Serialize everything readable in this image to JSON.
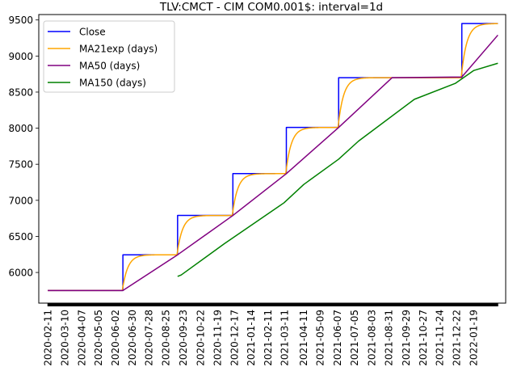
{
  "chart_data": {
    "type": "line",
    "title": "TLV:CMCT - CIM COM0.001$: interval=1d",
    "xlabel": "",
    "ylabel": "",
    "x_range": [
      "2020-01-27",
      "2022-03-14"
    ],
    "ylim": [
      5575,
      9575
    ],
    "grid": false,
    "legend_position": "top-left",
    "y_ticks": [
      6000,
      6500,
      7000,
      7500,
      8000,
      8500,
      9000,
      9500
    ],
    "x_ticks": [
      "2020-02-11",
      "2020-03-10",
      "2020-04-07",
      "2020-05-05",
      "2020-06-02",
      "2020-06-30",
      "2020-07-28",
      "2020-08-25",
      "2020-09-23",
      "2020-10-22",
      "2020-11-19",
      "2020-12-17",
      "2021-01-14",
      "2021-02-11",
      "2021-03-11",
      "2021-04-11",
      "2021-05-09",
      "2021-06-07",
      "2021-07-05",
      "2021-08-03",
      "2021-08-31",
      "2021-09-29",
      "2021-10-27",
      "2021-11-24",
      "2021-12-22",
      "2022-01-19"
    ],
    "series": [
      {
        "name": "Close",
        "color": "#0000ff",
        "step_points": [
          [
            "2020-02-11",
            5750
          ],
          [
            "2020-06-15",
            5750
          ],
          [
            "2020-06-15",
            6245
          ],
          [
            "2020-09-14",
            6245
          ],
          [
            "2020-09-14",
            6790
          ],
          [
            "2020-12-15",
            6790
          ],
          [
            "2020-12-15",
            7370
          ],
          [
            "2021-03-14",
            7370
          ],
          [
            "2021-03-14",
            8010
          ],
          [
            "2021-06-09",
            8010
          ],
          [
            "2021-06-09",
            8700
          ],
          [
            "2021-12-31",
            8700
          ],
          [
            "2021-12-31",
            9450
          ],
          [
            "2022-03-01",
            9450
          ]
        ]
      },
      {
        "name": "MA21exp (days)",
        "color": "#ffa500",
        "start_date": "2020-02-11",
        "start_value": 5750,
        "end_date": "2022-03-01",
        "approach_days": 9
      },
      {
        "name": "MA50 (days)",
        "color": "#800080",
        "points": [
          [
            "2020-02-11",
            5750
          ],
          [
            "2020-06-15",
            5750
          ],
          [
            "2020-09-14",
            6245
          ],
          [
            "2020-12-15",
            6790
          ],
          [
            "2021-03-14",
            7370
          ],
          [
            "2021-06-09",
            8010
          ],
          [
            "2021-09-06",
            8700
          ],
          [
            "2021-12-31",
            8710
          ],
          [
            "2022-03-01",
            9290
          ]
        ]
      },
      {
        "name": "MA150 (days)",
        "color": "#008000",
        "points": [
          [
            "2020-09-14",
            5945
          ],
          [
            "2020-09-20",
            5965
          ],
          [
            "2020-12-01",
            6400
          ],
          [
            "2021-01-12",
            6640
          ],
          [
            "2021-03-10",
            6965
          ],
          [
            "2021-04-12",
            7220
          ],
          [
            "2021-06-09",
            7570
          ],
          [
            "2021-07-12",
            7820
          ],
          [
            "2021-10-13",
            8400
          ],
          [
            "2021-12-20",
            8620
          ],
          [
            "2022-01-20",
            8800
          ],
          [
            "2022-03-01",
            8900
          ]
        ]
      }
    ]
  }
}
